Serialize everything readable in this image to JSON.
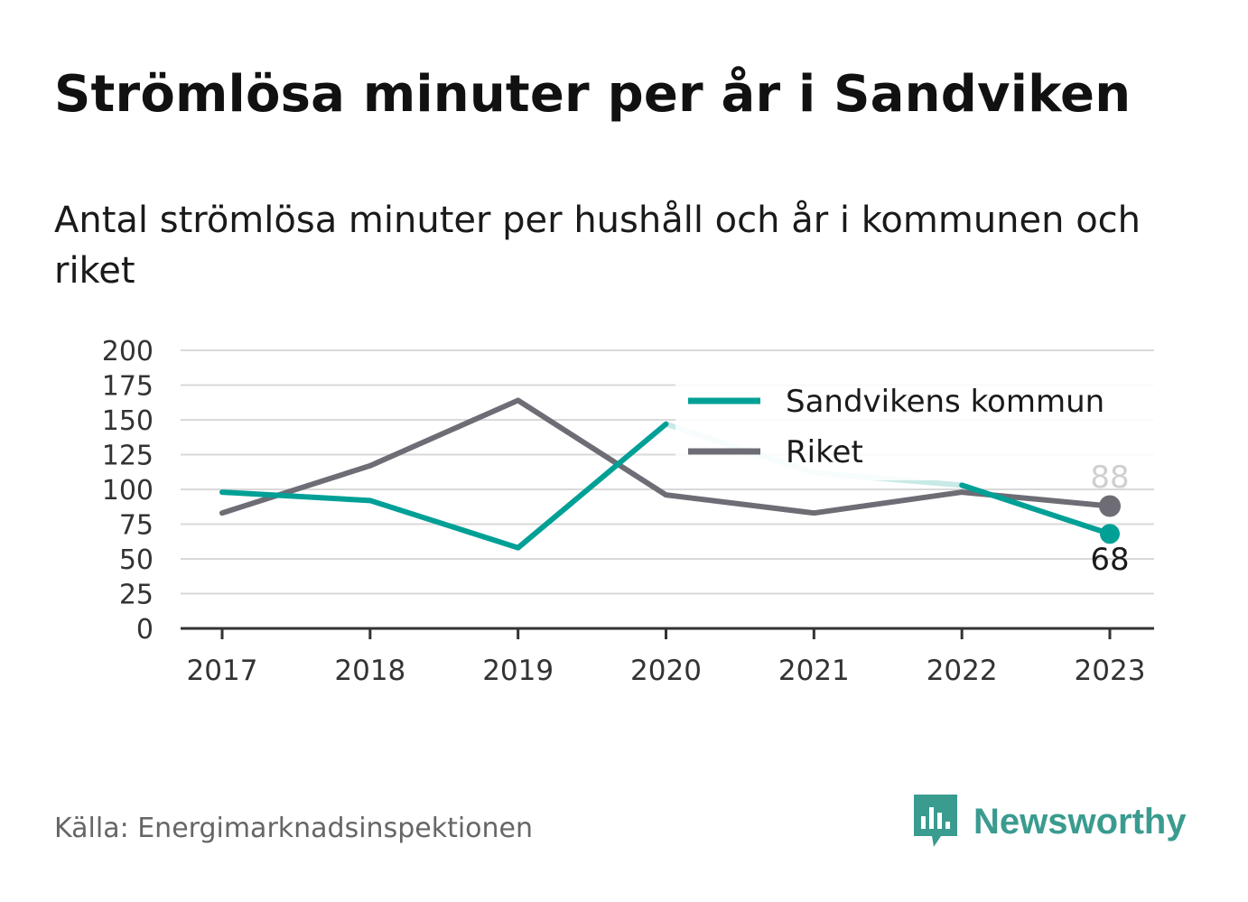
{
  "title": "Strömlösa minuter per år i Sandviken",
  "subtitle": "Antal strömlösa minuter per hushåll och år i kommunen och riket",
  "source": "Källa: Energimarknadsinspektionen",
  "logo": {
    "text": "Newsworthy",
    "icon": "newsworthy-bar-chart-icon"
  },
  "colors": {
    "sandviken": "#00a096",
    "sandviken_faded": "#c8eae7",
    "riket": "#6e6d76",
    "grid": "#d9d9d9",
    "axis": "#333333"
  },
  "chart_data": {
    "type": "line",
    "x": [
      "2017",
      "2018",
      "2019",
      "2020",
      "2021",
      "2022",
      "2023"
    ],
    "yticks": [
      "0",
      "25",
      "50",
      "75",
      "100",
      "125",
      "150",
      "175",
      "200"
    ],
    "ylim": [
      0,
      200
    ],
    "grid": true,
    "legend_position": "top-right",
    "series": [
      {
        "name": "Sandvikens kommun",
        "values": [
          98,
          92,
          58,
          147,
          112,
          103,
          68
        ]
      },
      {
        "name": "Riket",
        "values": [
          83,
          117,
          164,
          96,
          83,
          98,
          88
        ]
      }
    ],
    "end_labels": {
      "sandviken": "68",
      "riket": "88"
    }
  }
}
